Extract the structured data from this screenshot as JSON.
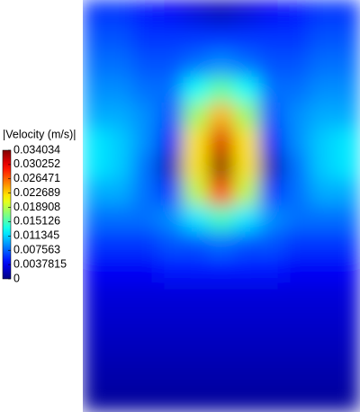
{
  "chart_data": {
    "type": "heatmap",
    "colormap": "jet",
    "colorbar_title": "|Velocity (m/s)|",
    "zlim": [
      0,
      0.034034
    ],
    "zticks": [
      0,
      0.0037815,
      0.007563,
      0.011345,
      0.015126,
      0.018908,
      0.022689,
      0.026471,
      0.030252,
      0.034034
    ],
    "z": [
      [
        0.006,
        0.006,
        0.005,
        0.004,
        0.003,
        0.002,
        0.003,
        0.004,
        0.005,
        0.006,
        0.006
      ],
      [
        0.007,
        0.007,
        0.006,
        0.006,
        0.006,
        0.006,
        0.006,
        0.006,
        0.006,
        0.007,
        0.007
      ],
      [
        0.008,
        0.008,
        0.007,
        0.007,
        0.008,
        0.009,
        0.008,
        0.007,
        0.007,
        0.008,
        0.008
      ],
      [
        0.009,
        0.009,
        0.008,
        0.008,
        0.013,
        0.016,
        0.013,
        0.008,
        0.008,
        0.009,
        0.009
      ],
      [
        0.01,
        0.01,
        0.009,
        0.007,
        0.018,
        0.024,
        0.018,
        0.007,
        0.009,
        0.01,
        0.01
      ],
      [
        0.012,
        0.011,
        0.009,
        0.004,
        0.022,
        0.031,
        0.022,
        0.004,
        0.009,
        0.011,
        0.012
      ],
      [
        0.012,
        0.011,
        0.008,
        0.002,
        0.022,
        0.034,
        0.022,
        0.002,
        0.008,
        0.011,
        0.012
      ],
      [
        0.01,
        0.01,
        0.008,
        0.006,
        0.019,
        0.029,
        0.019,
        0.006,
        0.008,
        0.01,
        0.01
      ],
      [
        0.008,
        0.008,
        0.008,
        0.009,
        0.012,
        0.015,
        0.012,
        0.009,
        0.008,
        0.008,
        0.008
      ],
      [
        0.006,
        0.006,
        0.006,
        0.007,
        0.007,
        0.008,
        0.007,
        0.007,
        0.006,
        0.006,
        0.006
      ],
      [
        0.004,
        0.004,
        0.004,
        0.005,
        0.005,
        0.005,
        0.005,
        0.005,
        0.004,
        0.004,
        0.004
      ],
      [
        0.003,
        0.003,
        0.003,
        0.003,
        0.003,
        0.003,
        0.003,
        0.003,
        0.003,
        0.003,
        0.003
      ],
      [
        0.0025,
        0.0025,
        0.0025,
        0.0025,
        0.0025,
        0.0025,
        0.0025,
        0.0025,
        0.0025,
        0.0025,
        0.0025
      ],
      [
        0.002,
        0.002,
        0.002,
        0.002,
        0.002,
        0.002,
        0.002,
        0.002,
        0.002,
        0.002,
        0.002
      ],
      [
        0.0015,
        0.0015,
        0.0015,
        0.0015,
        0.0015,
        0.0015,
        0.0015,
        0.0015,
        0.0015,
        0.0015,
        0.0015
      ],
      [
        0.001,
        0.001,
        0.001,
        0.001,
        0.001,
        0.001,
        0.001,
        0.001,
        0.001,
        0.001,
        0.001
      ]
    ]
  }
}
